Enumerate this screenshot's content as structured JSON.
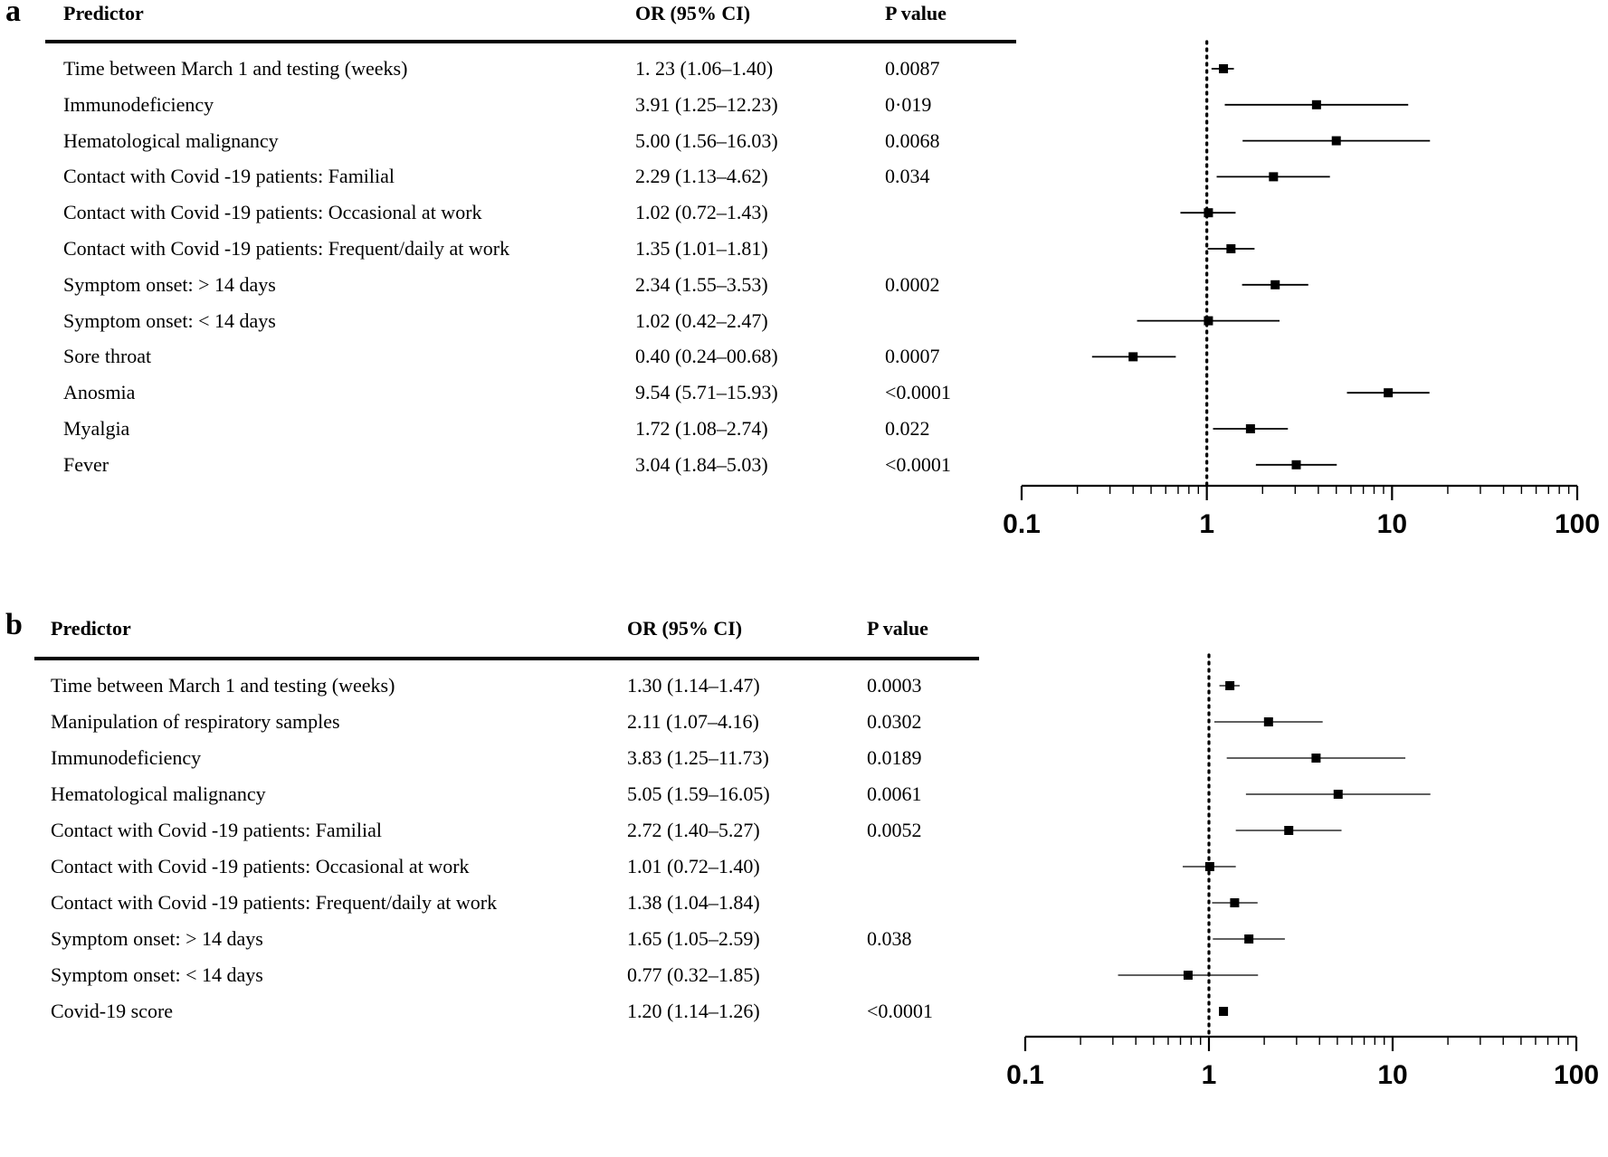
{
  "panels": [
    {
      "label": "a",
      "headers": {
        "predictor": "Predictor",
        "or": "OR (95% CI)",
        "p": "P value"
      },
      "rows": [
        {
          "predictor": "Time between March 1 and testing   (weeks)",
          "or_text": "1. 23 (1.06–1.40)",
          "p": "0.0087"
        },
        {
          "predictor": "Immunodeficiency",
          "or_text": "3.91 (1.25–12.23)",
          "p": "0·019"
        },
        {
          "predictor": "Hematological malignancy",
          "or_text": "5.00 (1.56–16.03)",
          "p": "0.0068"
        },
        {
          "predictor": "Contact with Covid -19 patients: Familial",
          "or_text": "2.29 (1.13–4.62)",
          "p": "0.034"
        },
        {
          "predictor": "Contact with Covid -19 patients: Occasional at work",
          "or_text": "1.02 (0.72–1.43)",
          "p": ""
        },
        {
          "predictor": "Contact with Covid -19 patients: Frequent/daily at work",
          "or_text": "1.35 (1.01–1.81)",
          "p": ""
        },
        {
          "predictor": "Symptom onset: > 14 days",
          "or_text": "2.34 (1.55–3.53)",
          "p": "0.0002"
        },
        {
          "predictor": "Symptom onset: < 14 days",
          "or_text": "1.02 (0.42–2.47)",
          "p": ""
        },
        {
          "predictor": "Sore throat",
          "or_text": "0.40 (0.24–00.68)",
          "p": "0.0007"
        },
        {
          "predictor": "Anosmia",
          "or_text": "9.54 (5.71–15.93)",
          "p": "<0.0001"
        },
        {
          "predictor": "Myalgia",
          "or_text": "1.72 (1.08–2.74)",
          "p": "0.022"
        },
        {
          "predictor": "Fever",
          "or_text": "3.04 (1.84–5.03)",
          "p": "<0.0001"
        }
      ]
    },
    {
      "label": "b",
      "headers": {
        "predictor": "Predictor",
        "or": "OR (95% CI)",
        "p": "P value"
      },
      "rows": [
        {
          "predictor": "Time between March 1 and testing (weeks)",
          "or_text": "1.30 (1.14–1.47)",
          "p": "0.0003"
        },
        {
          "predictor": "Manipulation of respiratory samples",
          "or_text": "2.11 (1.07–4.16)",
          "p": "0.0302"
        },
        {
          "predictor": "Immunodeficiency",
          "or_text": "3.83 (1.25–11.73)",
          "p": "0.0189"
        },
        {
          "predictor": "Hematological malignancy",
          "or_text": "5.05 (1.59–16.05)",
          "p": "0.0061"
        },
        {
          "predictor": "Contact with Covid -19 patients: Familial",
          "or_text": "2.72 (1.40–5.27)",
          "p": "0.0052"
        },
        {
          "predictor": "Contact with Covid -19 patients: Occasional at work",
          "or_text": "1.01 (0.72–1.40)",
          "p": ""
        },
        {
          "predictor": "Contact with Covid -19 patients: Frequent/daily at work",
          "or_text": "1.38 (1.04–1.84)",
          "p": ""
        },
        {
          "predictor": "Symptom onset: > 14 days",
          "or_text": "1.65 (1.05–2.59)",
          "p": "0.038"
        },
        {
          "predictor": "Symptom onset: < 14 days",
          "or_text": "0.77 (0.32–1.85)",
          "p": ""
        },
        {
          "predictor": "Covid-19 score",
          "or_text": "1.20 (1.14–1.26)",
          "p": "<0.0001"
        }
      ]
    }
  ],
  "chart_data": [
    {
      "type": "forest",
      "panel": "a",
      "x_scale": "log",
      "xlim": [
        0.1,
        100
      ],
      "x_ticks": [
        0.1,
        1,
        10,
        100
      ],
      "x_tick_labels": [
        "0.1",
        "1",
        "10",
        "100"
      ],
      "reference_line": 1,
      "categories": [
        "Time between March 1 and testing   (weeks)",
        "Immunodeficiency",
        "Hematological malignancy",
        "Contact with Covid -19 patients: Familial",
        "Contact with Covid -19 patients: Occasional at work",
        "Contact with Covid -19 patients: Frequent/daily at work",
        "Symptom onset: > 14 days",
        "Symptom onset: < 14 days",
        "Sore throat",
        "Anosmia",
        "Myalgia",
        "Fever"
      ],
      "or": [
        1.23,
        3.91,
        5.0,
        2.29,
        1.02,
        1.35,
        2.34,
        1.02,
        0.4,
        9.54,
        1.72,
        3.04
      ],
      "ci_low": [
        1.06,
        1.25,
        1.56,
        1.13,
        0.72,
        1.01,
        1.55,
        0.42,
        0.24,
        5.71,
        1.08,
        1.84
      ],
      "ci_high": [
        1.4,
        12.23,
        16.03,
        4.62,
        1.43,
        1.81,
        3.53,
        2.47,
        0.68,
        15.93,
        2.74,
        5.03
      ]
    },
    {
      "type": "forest",
      "panel": "b",
      "x_scale": "log",
      "xlim": [
        0.1,
        100
      ],
      "x_ticks": [
        0.1,
        1,
        10,
        100
      ],
      "x_tick_labels": [
        "0.1",
        "1",
        "10",
        "100"
      ],
      "reference_line": 1,
      "categories": [
        "Time between March 1 and testing (weeks)",
        "Manipulation of respiratory samples",
        "Immunodeficiency",
        "Hematological malignancy",
        "Contact with Covid -19 patients: Familial",
        "Contact with Covid -19 patients: Occasional at work",
        "Contact with Covid -19 patients: Frequent/daily at work",
        "Symptom onset: > 14 days",
        "Symptom onset: < 14 days",
        "Covid-19 score"
      ],
      "or": [
        1.3,
        2.11,
        3.83,
        5.05,
        2.72,
        1.01,
        1.38,
        1.65,
        0.77,
        1.2
      ],
      "ci_low": [
        1.14,
        1.07,
        1.25,
        1.59,
        1.4,
        0.72,
        1.04,
        1.05,
        0.32,
        1.14
      ],
      "ci_high": [
        1.47,
        4.16,
        11.73,
        16.05,
        5.27,
        1.4,
        1.84,
        2.59,
        1.85,
        1.26
      ]
    }
  ]
}
